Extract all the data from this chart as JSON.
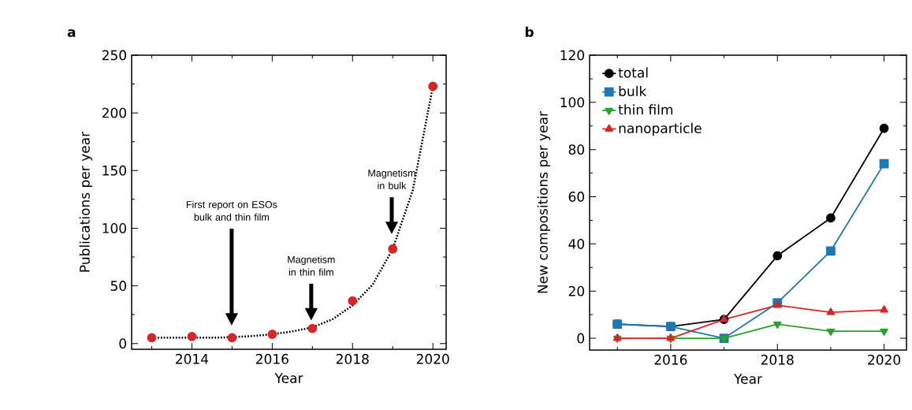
{
  "chart_data": [
    {
      "type": "scatter",
      "title": "a",
      "xlabel": "Year",
      "ylabel": "Publications per year",
      "xlim": [
        2012.5,
        2020.33
      ],
      "ylim": [
        -5,
        250
      ],
      "xticks": [
        {
          "value": 2013,
          "label": null
        },
        2014,
        {
          "value": 2015,
          "label": null
        },
        2016,
        {
          "value": 2017,
          "label": null
        },
        2018,
        {
          "value": 2019,
          "label": null
        },
        2020
      ],
      "yticks": [
        0,
        {
          "value": 25,
          "label": null
        },
        50,
        {
          "value": 75,
          "label": null
        },
        100,
        {
          "value": 125,
          "label": null
        },
        150,
        {
          "value": 175,
          "label": null
        },
        200,
        {
          "value": 225,
          "label": null
        },
        250
      ],
      "series": [
        {
          "type": "scatter",
          "color": "#d62728",
          "marker": "circle",
          "x": [
            2013,
            2014,
            2015,
            2016,
            2017,
            2018,
            2019,
            2020
          ],
          "values": [
            5,
            6,
            5,
            8,
            13,
            37,
            82,
            223
          ]
        },
        {
          "type": "line",
          "color": "#000000",
          "marker": "none",
          "line_style": "dotted",
          "x": [
            2013,
            2013.5,
            2014,
            2014.5,
            2015,
            2015.5,
            2016,
            2016.5,
            2017,
            2017.5,
            2018,
            2018.5,
            2019,
            2019.5,
            2020
          ],
          "values": [
            5,
            5,
            5,
            5,
            5.5,
            6.5,
            8,
            10.5,
            14,
            21,
            33,
            51,
            82,
            133,
            223
          ]
        }
      ],
      "annotations": [
        "First report on ESOs bulk and thin film",
        "Magnetism in thin film",
        "Magnetism in bulk"
      ]
    },
    {
      "type": "line",
      "title": "b",
      "xlabel": "Year",
      "ylabel": "New compositions per year",
      "xlim": [
        2014.48,
        2020.42
      ],
      "ylim": [
        -5,
        120
      ],
      "xticks": [
        {
          "value": 2015,
          "label": null
        },
        2016,
        {
          "value": 2017,
          "label": null
        },
        2018,
        {
          "value": 2019,
          "label": null
        },
        2020
      ],
      "yticks": [
        0,
        {
          "value": 10,
          "label": null
        },
        20,
        {
          "value": 30,
          "label": null
        },
        40,
        {
          "value": 50,
          "label": null
        },
        60,
        {
          "value": 70,
          "label": null
        },
        80,
        {
          "value": 90,
          "label": null
        },
        100,
        {
          "value": 110,
          "label": null
        },
        120
      ],
      "x": [
        2015,
        2016,
        2017,
        2018,
        2019,
        2020
      ],
      "legend": "top left",
      "series": [
        {
          "name": "total",
          "color": "#000000",
          "marker": "circle",
          "values": [
            6,
            5,
            8,
            35,
            51,
            89
          ]
        },
        {
          "name": "bulk",
          "color": "#1f77b4",
          "marker": "square",
          "values": [
            6,
            5,
            0,
            15,
            37,
            74
          ]
        },
        {
          "name": "thin film",
          "color": "#2ca02c",
          "marker": "triangle-down",
          "values": [
            0,
            0,
            0,
            6,
            3,
            3
          ]
        },
        {
          "name": "nanoparticle",
          "color": "#d62728",
          "marker": "triangle",
          "values": [
            0,
            0,
            8,
            14,
            11,
            12
          ]
        }
      ]
    }
  ]
}
